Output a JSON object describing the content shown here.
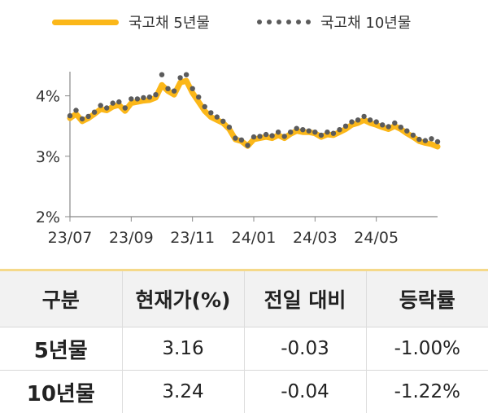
{
  "colors": {
    "series5y": "#FBB719",
    "series10y": "#5B5B5B",
    "axis": "#888888"
  },
  "legend": {
    "item1": "국고채 5년물",
    "item2": "국고채 10년물"
  },
  "chart_data": {
    "type": "line",
    "ylim": [
      2,
      4.4
    ],
    "yticks": [
      {
        "value": 2,
        "label": "2%"
      },
      {
        "value": 3,
        "label": "3%"
      },
      {
        "value": 4,
        "label": "4%"
      }
    ],
    "xticks": [
      {
        "value": 0,
        "label": "23/07"
      },
      {
        "value": 2,
        "label": "23/09"
      },
      {
        "value": 4,
        "label": "23/11"
      },
      {
        "value": 6,
        "label": "24/01"
      },
      {
        "value": 8,
        "label": "24/03"
      },
      {
        "value": 10,
        "label": "24/05"
      }
    ],
    "xlim": [
      0,
      12
    ],
    "series": [
      {
        "name": "국고채 5년물",
        "style": "line",
        "points": [
          [
            0,
            3.63
          ],
          [
            0.2,
            3.7
          ],
          [
            0.4,
            3.58
          ],
          [
            0.6,
            3.63
          ],
          [
            0.8,
            3.7
          ],
          [
            1.0,
            3.78
          ],
          [
            1.2,
            3.76
          ],
          [
            1.4,
            3.82
          ],
          [
            1.6,
            3.85
          ],
          [
            1.8,
            3.75
          ],
          [
            2.0,
            3.88
          ],
          [
            2.2,
            3.9
          ],
          [
            2.4,
            3.92
          ],
          [
            2.6,
            3.93
          ],
          [
            2.8,
            3.97
          ],
          [
            3.0,
            4.18
          ],
          [
            3.2,
            4.08
          ],
          [
            3.4,
            4.02
          ],
          [
            3.6,
            4.22
          ],
          [
            3.8,
            4.25
          ],
          [
            4.0,
            4.05
          ],
          [
            4.2,
            3.9
          ],
          [
            4.4,
            3.75
          ],
          [
            4.6,
            3.65
          ],
          [
            4.8,
            3.6
          ],
          [
            5.0,
            3.55
          ],
          [
            5.2,
            3.45
          ],
          [
            5.4,
            3.28
          ],
          [
            5.6,
            3.25
          ],
          [
            5.8,
            3.17
          ],
          [
            6.0,
            3.28
          ],
          [
            6.2,
            3.3
          ],
          [
            6.4,
            3.32
          ],
          [
            6.6,
            3.3
          ],
          [
            6.8,
            3.35
          ],
          [
            7.0,
            3.3
          ],
          [
            7.2,
            3.37
          ],
          [
            7.4,
            3.42
          ],
          [
            7.6,
            3.4
          ],
          [
            7.8,
            3.4
          ],
          [
            8.0,
            3.38
          ],
          [
            8.2,
            3.32
          ],
          [
            8.4,
            3.36
          ],
          [
            8.6,
            3.35
          ],
          [
            8.8,
            3.4
          ],
          [
            9.0,
            3.45
          ],
          [
            9.2,
            3.52
          ],
          [
            9.4,
            3.55
          ],
          [
            9.6,
            3.6
          ],
          [
            9.8,
            3.55
          ],
          [
            10.0,
            3.52
          ],
          [
            10.2,
            3.48
          ],
          [
            10.4,
            3.45
          ],
          [
            10.6,
            3.5
          ],
          [
            10.8,
            3.45
          ],
          [
            11.0,
            3.38
          ],
          [
            11.2,
            3.32
          ],
          [
            11.4,
            3.25
          ],
          [
            11.6,
            3.22
          ],
          [
            11.8,
            3.2
          ],
          [
            12.0,
            3.16
          ]
        ]
      },
      {
        "name": "국고채 10년물",
        "style": "dots",
        "points": [
          [
            0,
            3.67
          ],
          [
            0.2,
            3.76
          ],
          [
            0.4,
            3.62
          ],
          [
            0.6,
            3.66
          ],
          [
            0.8,
            3.73
          ],
          [
            1.0,
            3.84
          ],
          [
            1.2,
            3.8
          ],
          [
            1.4,
            3.88
          ],
          [
            1.6,
            3.9
          ],
          [
            1.8,
            3.8
          ],
          [
            2.0,
            3.95
          ],
          [
            2.2,
            3.95
          ],
          [
            2.4,
            3.97
          ],
          [
            2.6,
            3.98
          ],
          [
            2.8,
            4.02
          ],
          [
            3.0,
            4.35
          ],
          [
            3.2,
            4.12
          ],
          [
            3.4,
            4.08
          ],
          [
            3.6,
            4.3
          ],
          [
            3.8,
            4.35
          ],
          [
            4.0,
            4.12
          ],
          [
            4.2,
            3.98
          ],
          [
            4.4,
            3.82
          ],
          [
            4.6,
            3.72
          ],
          [
            4.8,
            3.65
          ],
          [
            5.0,
            3.58
          ],
          [
            5.2,
            3.48
          ],
          [
            5.4,
            3.3
          ],
          [
            5.6,
            3.27
          ],
          [
            5.8,
            3.18
          ],
          [
            6.0,
            3.32
          ],
          [
            6.2,
            3.33
          ],
          [
            6.4,
            3.36
          ],
          [
            6.6,
            3.34
          ],
          [
            6.8,
            3.4
          ],
          [
            7.0,
            3.33
          ],
          [
            7.2,
            3.4
          ],
          [
            7.4,
            3.46
          ],
          [
            7.6,
            3.44
          ],
          [
            7.8,
            3.42
          ],
          [
            8.0,
            3.4
          ],
          [
            8.2,
            3.35
          ],
          [
            8.4,
            3.4
          ],
          [
            8.6,
            3.38
          ],
          [
            8.8,
            3.44
          ],
          [
            9.0,
            3.5
          ],
          [
            9.2,
            3.57
          ],
          [
            9.4,
            3.6
          ],
          [
            9.6,
            3.66
          ],
          [
            9.8,
            3.6
          ],
          [
            10.0,
            3.57
          ],
          [
            10.2,
            3.52
          ],
          [
            10.4,
            3.49
          ],
          [
            10.6,
            3.55
          ],
          [
            10.8,
            3.48
          ],
          [
            11.0,
            3.42
          ],
          [
            11.2,
            3.35
          ],
          [
            11.4,
            3.28
          ],
          [
            11.6,
            3.26
          ],
          [
            11.8,
            3.29
          ],
          [
            12.0,
            3.24
          ]
        ]
      }
    ]
  },
  "table": {
    "headers": [
      "구분",
      "현재가(%)",
      "전일 대비",
      "등락률"
    ],
    "rows": [
      [
        "5년물",
        "3.16",
        "-0.03",
        "-1.00%"
      ],
      [
        "10년물",
        "3.24",
        "-0.04",
        "-1.22%"
      ]
    ]
  }
}
